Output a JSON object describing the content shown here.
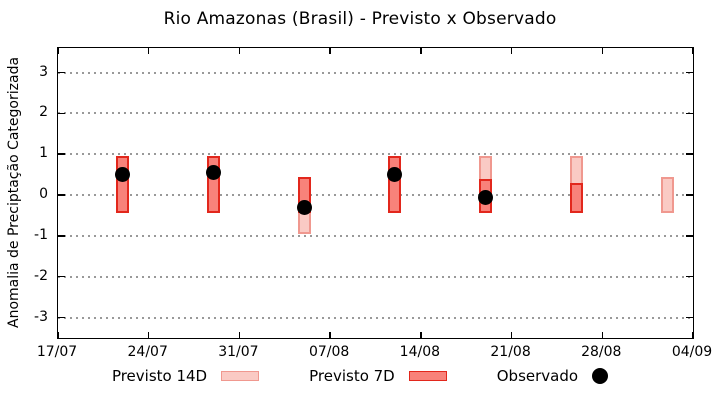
{
  "title": "Rio Amazonas (Brasil) - Previsto x Observado",
  "colors": {
    "background": "#ffffff",
    "axis": "#000000",
    "grid": "#999999",
    "previsto_14d_fill": "#facac4",
    "previsto_14d_border": "#f0988f",
    "previsto_7d_fill": "#f8827a",
    "previsto_7d_border": "#e2271c",
    "observado": "#000000"
  },
  "chart_data": {
    "type": "bar",
    "subtype": "range-bars-with-scatter-overlay",
    "title": "Rio Amazonas (Brasil) - Previsto x Observado",
    "xlabel": "",
    "ylabel": "Anomalia de Preciptação Categorizada",
    "ylim": [
      -3.5,
      3.6
    ],
    "x_range_days": [
      0,
      49
    ],
    "grid": "horizontal-dotted",
    "legend_position": "bottom-center",
    "y_ticks": [
      3,
      2,
      1,
      0,
      -1,
      -2,
      -3
    ],
    "x_ticks": [
      {
        "label": "17/07",
        "day": 0
      },
      {
        "label": "24/07",
        "day": 7
      },
      {
        "label": "31/07",
        "day": 14
      },
      {
        "label": "07/08",
        "day": 21
      },
      {
        "label": "14/08",
        "day": 28
      },
      {
        "label": "21/08",
        "day": 35
      },
      {
        "label": "28/08",
        "day": 42
      },
      {
        "label": "04/09",
        "day": 49
      }
    ],
    "series": [
      {
        "name": "Previsto 14D",
        "type": "range-bar",
        "points": [
          {
            "date": "05/08",
            "day": 19,
            "low": -0.95,
            "high": 0.45
          },
          {
            "date": "19/08",
            "day": 33,
            "low": -0.45,
            "high": 0.95
          },
          {
            "date": "26/08",
            "day": 40,
            "low": -0.45,
            "high": 0.95
          },
          {
            "date": "02/09",
            "day": 47,
            "low": -0.45,
            "high": 0.45
          }
        ]
      },
      {
        "name": "Previsto 7D",
        "type": "range-bar",
        "points": [
          {
            "date": "22/07",
            "day": 5,
            "low": -0.45,
            "high": 0.95
          },
          {
            "date": "29/07",
            "day": 12,
            "low": -0.45,
            "high": 0.95
          },
          {
            "date": "05/08",
            "day": 19,
            "low": -0.45,
            "high": 0.45
          },
          {
            "date": "12/08",
            "day": 26,
            "low": -0.45,
            "high": 0.95
          },
          {
            "date": "19/08",
            "day": 33,
            "low": -0.45,
            "high": 0.4
          },
          {
            "date": "26/08",
            "day": 40,
            "low": -0.45,
            "high": 0.3
          }
        ]
      },
      {
        "name": "Observado",
        "type": "scatter",
        "points": [
          {
            "date": "22/07",
            "day": 5,
            "value": 0.5
          },
          {
            "date": "29/07",
            "day": 12,
            "value": 0.55
          },
          {
            "date": "05/08",
            "day": 19,
            "value": -0.3
          },
          {
            "date": "12/08",
            "day": 26,
            "value": 0.5
          },
          {
            "date": "19/08",
            "day": 33,
            "value": -0.05
          }
        ]
      }
    ],
    "legend": [
      "Previsto 14D",
      "Previsto 7D",
      "Observado"
    ]
  }
}
